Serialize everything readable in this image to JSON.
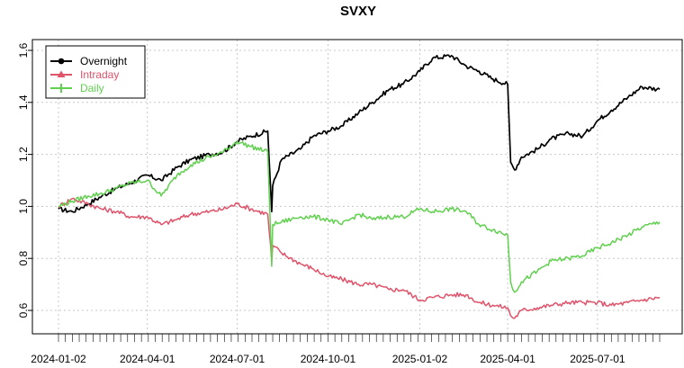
{
  "chart_data": {
    "type": "line",
    "title": "SVXY",
    "xlabel": "",
    "ylabel": "",
    "ylim": [
      0.5,
      1.65
    ],
    "grid": true,
    "legend_position": "top-left",
    "x_tick_labels": [
      "2024-01-02",
      "2024-04-01",
      "2024-07-01",
      "2024-10-01",
      "2025-01-02",
      "2025-04-01",
      "2025-07-01"
    ],
    "y_ticks": [
      0.6,
      0.8,
      1.0,
      1.2,
      1.4,
      1.6
    ],
    "y_tick_labels": [
      "0.6",
      "0.8",
      "1.0",
      "1.2",
      "1.4",
      "1.6"
    ],
    "x": [
      "2024-01-02",
      "2024-01-16",
      "2024-02-01",
      "2024-02-15",
      "2024-03-01",
      "2024-03-15",
      "2024-04-01",
      "2024-04-15",
      "2024-05-01",
      "2024-05-15",
      "2024-06-03",
      "2024-06-17",
      "2024-07-01",
      "2024-07-15",
      "2024-08-01",
      "2024-08-05",
      "2024-08-06",
      "2024-08-15",
      "2024-09-03",
      "2024-09-16",
      "2024-10-01",
      "2024-10-15",
      "2024-11-01",
      "2024-11-15",
      "2024-12-02",
      "2024-12-16",
      "2025-01-02",
      "2025-01-15",
      "2025-02-03",
      "2025-02-18",
      "2025-03-03",
      "2025-03-17",
      "2025-04-01",
      "2025-04-04",
      "2025-04-08",
      "2025-04-15",
      "2025-05-01",
      "2025-05-15",
      "2025-06-02",
      "2025-06-16",
      "2025-07-01",
      "2025-07-15",
      "2025-08-01",
      "2025-08-15",
      "2025-09-02"
    ],
    "series": [
      {
        "name": "Overnight",
        "color": "#000000",
        "marker": "circle",
        "values": [
          0.99,
          0.98,
          1.01,
          1.04,
          1.07,
          1.09,
          1.12,
          1.1,
          1.15,
          1.18,
          1.2,
          1.21,
          1.25,
          1.27,
          1.29,
          0.98,
          1.08,
          1.18,
          1.22,
          1.27,
          1.29,
          1.31,
          1.36,
          1.4,
          1.45,
          1.47,
          1.52,
          1.57,
          1.58,
          1.54,
          1.52,
          1.49,
          1.47,
          1.17,
          1.14,
          1.19,
          1.22,
          1.26,
          1.28,
          1.27,
          1.33,
          1.37,
          1.42,
          1.46,
          1.45
        ]
      },
      {
        "name": "Intraday",
        "color": "#df536b",
        "marker": "triangle",
        "values": [
          1.0,
          1.03,
          1.01,
          0.99,
          0.98,
          0.96,
          0.96,
          0.93,
          0.95,
          0.97,
          0.98,
          0.99,
          1.01,
          0.99,
          0.97,
          0.79,
          0.85,
          0.82,
          0.78,
          0.76,
          0.73,
          0.72,
          0.7,
          0.7,
          0.68,
          0.68,
          0.64,
          0.65,
          0.66,
          0.66,
          0.63,
          0.62,
          0.61,
          0.58,
          0.57,
          0.6,
          0.61,
          0.62,
          0.63,
          0.63,
          0.63,
          0.62,
          0.63,
          0.64,
          0.65
        ]
      },
      {
        "name": "Daily",
        "color": "#61d04f",
        "marker": "cross",
        "values": [
          1.0,
          1.02,
          1.04,
          1.05,
          1.07,
          1.09,
          1.1,
          1.04,
          1.12,
          1.16,
          1.19,
          1.21,
          1.25,
          1.23,
          1.21,
          0.77,
          0.93,
          0.94,
          0.96,
          0.96,
          0.95,
          0.93,
          0.97,
          0.95,
          0.96,
          0.96,
          0.99,
          0.98,
          0.99,
          0.98,
          0.93,
          0.91,
          0.89,
          0.71,
          0.67,
          0.71,
          0.75,
          0.79,
          0.8,
          0.81,
          0.84,
          0.86,
          0.89,
          0.92,
          0.94
        ]
      }
    ]
  }
}
